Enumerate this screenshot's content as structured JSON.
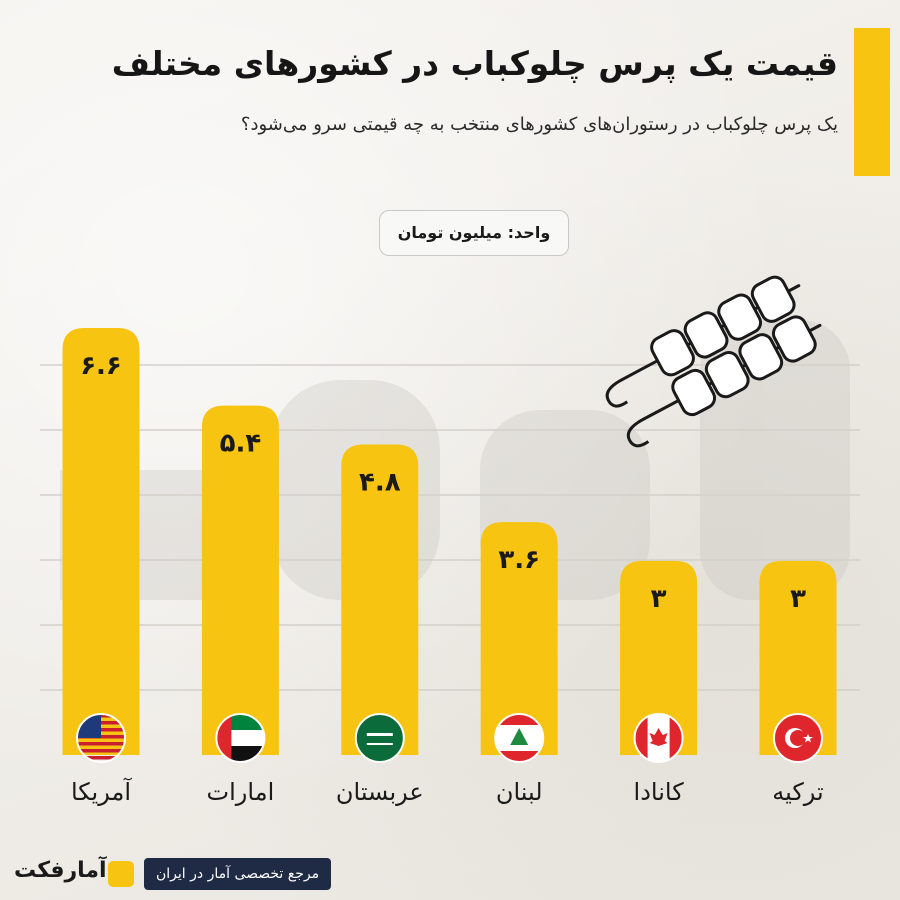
{
  "header": {
    "title": "قیمت یک پرس چلوکباب در کشورهای مختلف",
    "subtitle": "یک پرس چلوکباب در رستوران‌های کشورهای منتخب به چه قیمتی سرو می‌شود؟",
    "unit": "واحد: میلیون تومان"
  },
  "footer": {
    "logo": "آمارفکت",
    "tagline": "مرجع تخصصی آمار در ایران"
  },
  "colors": {
    "bar": "#f6c411",
    "accent": "#f6c411",
    "footer_bg": "#1f2a44"
  },
  "chart_data": {
    "type": "bar",
    "title": "قیمت یک پرس چلوکباب در کشورهای مختلف",
    "ylabel": "",
    "xlabel": "",
    "ylim": [
      0,
      7
    ],
    "grid": true,
    "categories": [
      "آمریکا",
      "امارات",
      "عربستان",
      "لبنان",
      "کانادا",
      "ترکیه"
    ],
    "values": [
      6.6,
      5.4,
      4.8,
      3.6,
      3,
      3
    ],
    "value_labels": [
      "۶.۶",
      "۵.۴",
      "۴.۸",
      "۳.۶",
      "۳",
      "۳"
    ],
    "flags": [
      "usa-flag-icon",
      "uae-flag-icon",
      "saudi-flag-icon",
      "lebanon-flag-icon",
      "canada-flag-icon",
      "turkey-flag-icon"
    ]
  }
}
